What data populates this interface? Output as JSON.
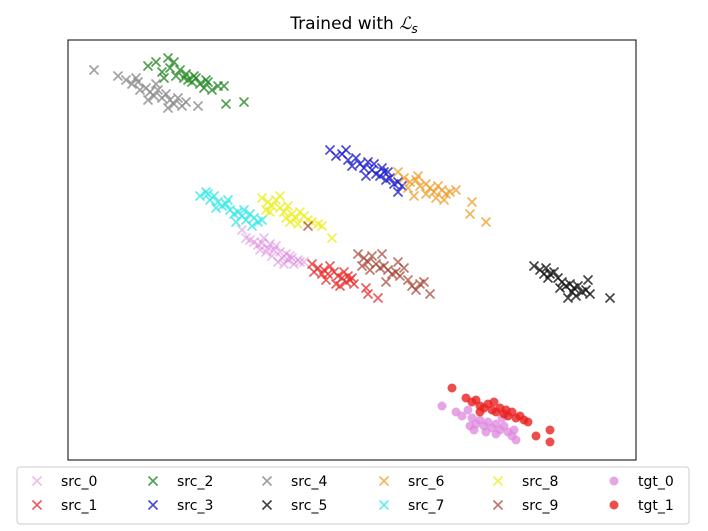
{
  "chart_data": {
    "type": "scatter",
    "title_prefix": "Trained with ",
    "title_math": "ℒ",
    "title_sub": "s",
    "xlabel": "",
    "ylabel": "",
    "axis_ticks": "hidden",
    "grid": false,
    "legend_placement": "bottom",
    "legend_columns": 6,
    "series": [
      {
        "name": "src_0",
        "marker": "x",
        "color": "#dd88dd",
        "alpha": 0.55,
        "points": [
          [
            262,
            243
          ],
          [
            268,
            248
          ],
          [
            274,
            250
          ],
          [
            280,
            252
          ],
          [
            286,
            254
          ],
          [
            292,
            258
          ],
          [
            298,
            260
          ],
          [
            304,
            262
          ],
          [
            258,
            245
          ],
          [
            266,
            252
          ],
          [
            272,
            256
          ],
          [
            278,
            262
          ],
          [
            284,
            264
          ],
          [
            290,
            256
          ],
          [
            270,
            244
          ],
          [
            276,
            246
          ],
          [
            282,
            258
          ],
          [
            288,
            260
          ],
          [
            294,
            264
          ],
          [
            300,
            262
          ],
          [
            242,
            230
          ],
          [
            246,
            238
          ],
          [
            254,
            242
          ],
          [
            260,
            250
          ],
          [
            264,
            238
          ],
          [
            250,
            240
          ]
        ]
      },
      {
        "name": "src_1",
        "marker": "x",
        "color": "#e83030",
        "alpha": 0.8,
        "points": [
          [
            312,
            264
          ],
          [
            318,
            268
          ],
          [
            324,
            270
          ],
          [
            328,
            274
          ],
          [
            334,
            272
          ],
          [
            338,
            276
          ],
          [
            342,
            278
          ],
          [
            346,
            282
          ],
          [
            350,
            280
          ],
          [
            354,
            284
          ],
          [
            322,
            274
          ],
          [
            330,
            266
          ],
          [
            336,
            284
          ],
          [
            344,
            272
          ],
          [
            314,
            272
          ],
          [
            326,
            280
          ],
          [
            340,
            286
          ],
          [
            348,
            276
          ],
          [
            366,
            288
          ],
          [
            368,
            294
          ],
          [
            378,
            298
          ],
          [
            352,
            278
          ]
        ]
      },
      {
        "name": "src_2",
        "marker": "x",
        "color": "#228822",
        "alpha": 0.8,
        "points": [
          [
            148,
            66
          ],
          [
            156,
            62
          ],
          [
            162,
            72
          ],
          [
            168,
            58
          ],
          [
            170,
            68
          ],
          [
            176,
            76
          ],
          [
            180,
            70
          ],
          [
            184,
            78
          ],
          [
            188,
            80
          ],
          [
            192,
            82
          ],
          [
            196,
            78
          ],
          [
            200,
            84
          ],
          [
            204,
            88
          ],
          [
            208,
            82
          ],
          [
            212,
            90
          ],
          [
            218,
            86
          ],
          [
            164,
            78
          ],
          [
            174,
            62
          ],
          [
            186,
            74
          ],
          [
            194,
            76
          ],
          [
            206,
            80
          ],
          [
            224,
            86
          ],
          [
            226,
            104
          ],
          [
            244,
            102
          ]
        ]
      },
      {
        "name": "src_3",
        "marker": "x",
        "color": "#1a1acc",
        "alpha": 0.8,
        "points": [
          [
            330,
            150
          ],
          [
            336,
            156
          ],
          [
            342,
            154
          ],
          [
            348,
            160
          ],
          [
            352,
            166
          ],
          [
            356,
            158
          ],
          [
            360,
            164
          ],
          [
            364,
            168
          ],
          [
            368,
            162
          ],
          [
            372,
            170
          ],
          [
            376,
            174
          ],
          [
            380,
            176
          ],
          [
            384,
            172
          ],
          [
            386,
            180
          ],
          [
            390,
            178
          ],
          [
            394,
            184
          ],
          [
            398,
            182
          ],
          [
            402,
            186
          ],
          [
            374,
            164
          ],
          [
            366,
            176
          ],
          [
            346,
            150
          ],
          [
            382,
            168
          ],
          [
            388,
            172
          ],
          [
            398,
            192
          ]
        ]
      },
      {
        "name": "src_4",
        "marker": "x",
        "color": "#888888",
        "alpha": 0.8,
        "points": [
          [
            94,
            70
          ],
          [
            118,
            76
          ],
          [
            126,
            80
          ],
          [
            132,
            84
          ],
          [
            138,
            82
          ],
          [
            140,
            90
          ],
          [
            146,
            88
          ],
          [
            150,
            92
          ],
          [
            154,
            96
          ],
          [
            158,
            90
          ],
          [
            162,
            98
          ],
          [
            166,
            94
          ],
          [
            170,
            100
          ],
          [
            174,
            104
          ],
          [
            178,
            98
          ],
          [
            182,
            106
          ],
          [
            186,
            102
          ],
          [
            198,
            106
          ],
          [
            136,
            78
          ],
          [
            148,
            100
          ],
          [
            156,
            84
          ],
          [
            168,
            108
          ]
        ]
      },
      {
        "name": "src_5",
        "marker": "x",
        "color": "#111111",
        "alpha": 0.8,
        "points": [
          [
            534,
            266
          ],
          [
            540,
            270
          ],
          [
            546,
            268
          ],
          [
            550,
            274
          ],
          [
            554,
            272
          ],
          [
            558,
            278
          ],
          [
            562,
            282
          ],
          [
            566,
            286
          ],
          [
            570,
            284
          ],
          [
            574,
            288
          ],
          [
            578,
            286
          ],
          [
            582,
            292
          ],
          [
            586,
            290
          ],
          [
            590,
            294
          ],
          [
            568,
            298
          ],
          [
            572,
            292
          ],
          [
            560,
            288
          ],
          [
            548,
            278
          ],
          [
            576,
            296
          ],
          [
            588,
            280
          ],
          [
            610,
            298
          ],
          [
            544,
            274
          ]
        ]
      },
      {
        "name": "src_6",
        "marker": "x",
        "color": "#ee9922",
        "alpha": 0.75,
        "points": [
          [
            398,
            172
          ],
          [
            404,
            178
          ],
          [
            410,
            182
          ],
          [
            416,
            180
          ],
          [
            420,
            186
          ],
          [
            426,
            184
          ],
          [
            430,
            188
          ],
          [
            434,
            192
          ],
          [
            438,
            186
          ],
          [
            442,
            190
          ],
          [
            446,
            194
          ],
          [
            450,
            192
          ],
          [
            456,
            190
          ],
          [
            436,
            198
          ],
          [
            426,
            194
          ],
          [
            408,
            188
          ],
          [
            418,
            176
          ],
          [
            472,
            202
          ],
          [
            470,
            214
          ],
          [
            486,
            222
          ],
          [
            414,
            196
          ],
          [
            444,
            200
          ]
        ]
      },
      {
        "name": "src_7",
        "marker": "x",
        "color": "#33e8e8",
        "alpha": 0.8,
        "points": [
          [
            200,
            196
          ],
          [
            206,
            192
          ],
          [
            210,
            200
          ],
          [
            214,
            196
          ],
          [
            218,
            202
          ],
          [
            222,
            206
          ],
          [
            226,
            204
          ],
          [
            230,
            210
          ],
          [
            234,
            214
          ],
          [
            238,
            212
          ],
          [
            242,
            216
          ],
          [
            246,
            220
          ],
          [
            250,
            214
          ],
          [
            254,
            218
          ],
          [
            258,
            222
          ],
          [
            262,
            220
          ],
          [
            236,
            222
          ],
          [
            244,
            210
          ],
          [
            228,
            200
          ],
          [
            216,
            208
          ],
          [
            208,
            194
          ],
          [
            252,
            226
          ]
        ]
      },
      {
        "name": "src_8",
        "marker": "x",
        "color": "#eeee22",
        "alpha": 0.8,
        "points": [
          [
            262,
            198
          ],
          [
            268,
            202
          ],
          [
            272,
            206
          ],
          [
            276,
            200
          ],
          [
            280,
            208
          ],
          [
            284,
            212
          ],
          [
            288,
            206
          ],
          [
            292,
            214
          ],
          [
            296,
            218
          ],
          [
            300,
            212
          ],
          [
            304,
            216
          ],
          [
            308,
            220
          ],
          [
            312,
            222
          ],
          [
            318,
            224
          ],
          [
            322,
            226
          ],
          [
            270,
            212
          ],
          [
            280,
            196
          ],
          [
            290,
            222
          ],
          [
            298,
            224
          ],
          [
            332,
            238
          ],
          [
            266,
            210
          ],
          [
            286,
            218
          ]
        ]
      },
      {
        "name": "src_9",
        "marker": "x",
        "color": "#a03a28",
        "alpha": 0.7,
        "points": [
          [
            358,
            254
          ],
          [
            364,
            258
          ],
          [
            368,
            262
          ],
          [
            372,
            256
          ],
          [
            376,
            264
          ],
          [
            380,
            268
          ],
          [
            384,
            266
          ],
          [
            388,
            270
          ],
          [
            392,
            274
          ],
          [
            396,
            272
          ],
          [
            400,
            276
          ],
          [
            404,
            268
          ],
          [
            408,
            280
          ],
          [
            412,
            286
          ],
          [
            416,
            290
          ],
          [
            420,
            284
          ],
          [
            424,
            282
          ],
          [
            430,
            294
          ],
          [
            382,
            254
          ],
          [
            370,
            270
          ],
          [
            398,
            262
          ],
          [
            362,
            266
          ],
          [
            386,
            282
          ],
          [
            308,
            226
          ]
        ]
      },
      {
        "name": "tgt_0",
        "marker": "o",
        "color": "#dd88dd",
        "alpha": 0.75,
        "points": [
          [
            442,
            406
          ],
          [
            456,
            412
          ],
          [
            462,
            416
          ],
          [
            468,
            410
          ],
          [
            472,
            418
          ],
          [
            476,
            424
          ],
          [
            480,
            420
          ],
          [
            484,
            426
          ],
          [
            488,
            422
          ],
          [
            492,
            428
          ],
          [
            496,
            424
          ],
          [
            500,
            430
          ],
          [
            504,
            426
          ],
          [
            508,
            432
          ],
          [
            512,
            436
          ],
          [
            516,
            440
          ],
          [
            474,
            430
          ],
          [
            486,
            432
          ],
          [
            496,
            434
          ],
          [
            514,
            430
          ],
          [
            470,
            426
          ],
          [
            502,
            418
          ]
        ]
      },
      {
        "name": "tgt_1",
        "marker": "o",
        "color": "#e82020",
        "alpha": 0.8,
        "points": [
          [
            452,
            388
          ],
          [
            466,
            398
          ],
          [
            472,
            402
          ],
          [
            476,
            400
          ],
          [
            480,
            406
          ],
          [
            484,
            408
          ],
          [
            488,
            404
          ],
          [
            492,
            410
          ],
          [
            496,
            412
          ],
          [
            500,
            408
          ],
          [
            504,
            414
          ],
          [
            508,
            416
          ],
          [
            512,
            412
          ],
          [
            516,
            418
          ],
          [
            520,
            416
          ],
          [
            524,
            420
          ],
          [
            528,
            422
          ],
          [
            536,
            436
          ],
          [
            550,
            430
          ],
          [
            550,
            442
          ],
          [
            480,
            412
          ],
          [
            494,
            402
          ],
          [
            506,
            410
          ]
        ]
      }
    ]
  }
}
